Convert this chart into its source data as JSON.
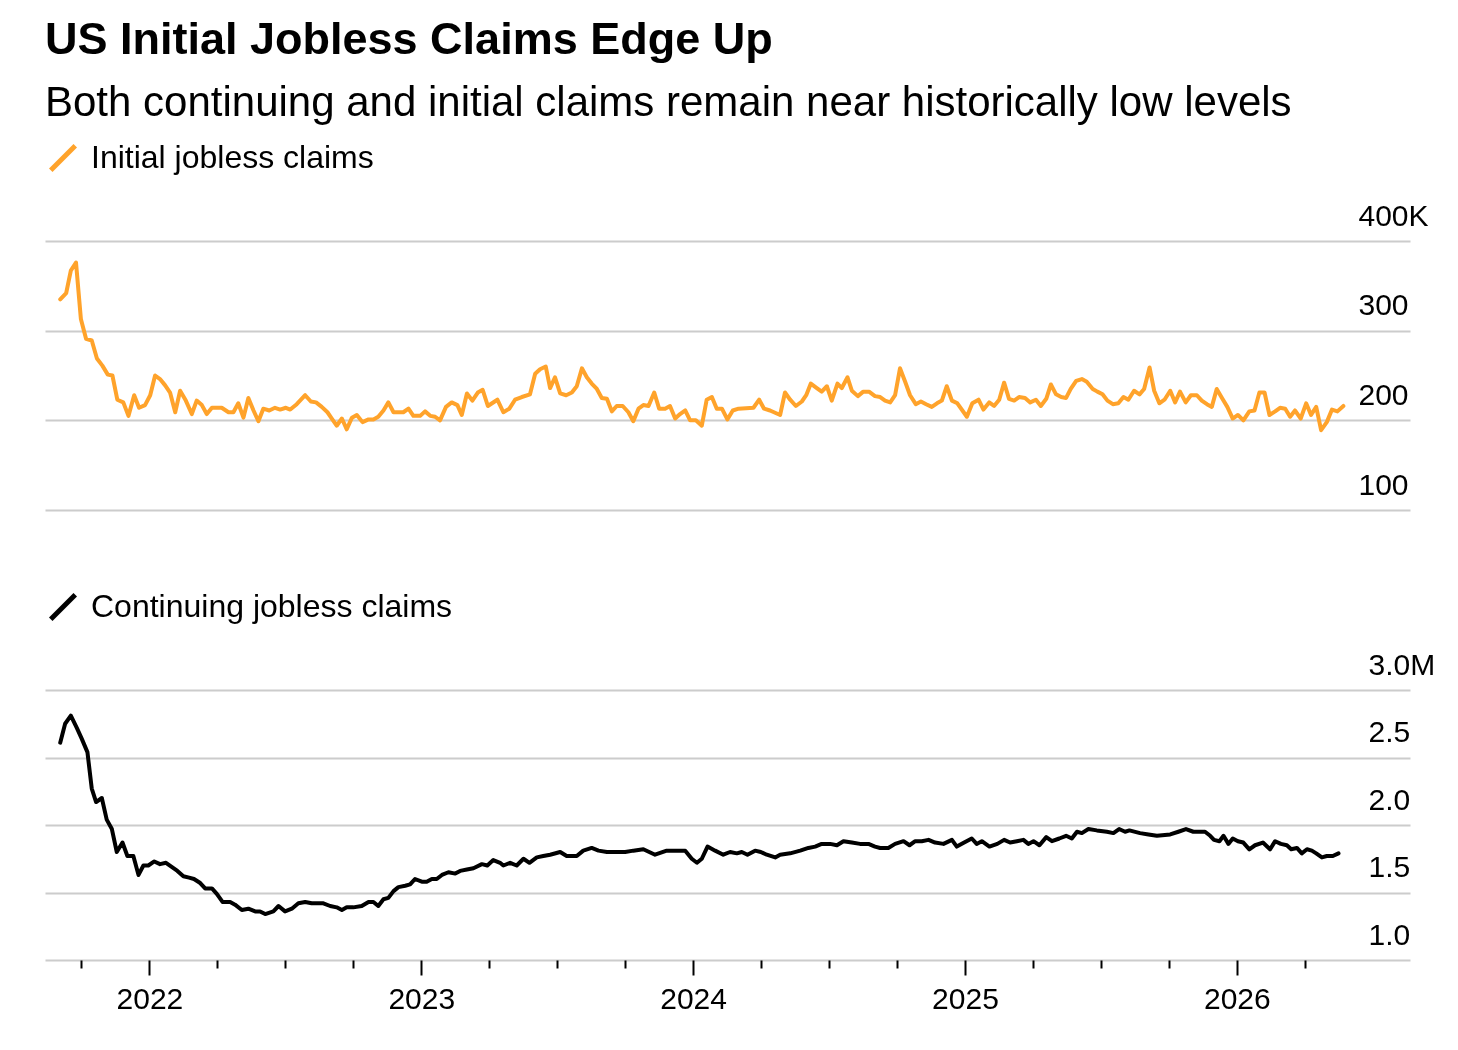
{
  "chart_data": [
    {
      "type": "line",
      "title": "US Initial Jobless Claims Edge Up",
      "subtitle": "Both continuing and initial claims remain near historically low levels",
      "xlim": [
        2021.616,
        2026.637
      ],
      "ylim": [
        100,
        400
      ],
      "yticks": [
        100,
        200,
        300,
        {
          "value": 400,
          "label": "400K"
        }
      ],
      "grid": "y",
      "legend": "top left",
      "tick_labels": "y",
      "series": [
        {
          "name": "Initial jobless claims",
          "color": "#ffa32b",
          "x": [
            2021.672,
            2021.694,
            2021.711,
            2021.73,
            2021.748,
            2021.767,
            2021.788,
            2021.807,
            2021.827,
            2021.847,
            2021.864,
            2021.882,
            2021.904,
            2021.923,
            2021.944,
            2021.962,
            2021.984,
            2022.003,
            2022.021,
            2022.039,
            2022.058,
            2022.076,
            2022.095,
            2022.113,
            2022.134,
            2022.156,
            2022.174,
            2022.193,
            2022.211,
            2022.23,
            2022.266,
            2022.291,
            2022.309,
            2022.327,
            2022.346,
            2022.364,
            2022.383,
            2022.401,
            2022.419,
            2022.441,
            2022.462,
            2022.481,
            2022.502,
            2022.518,
            2022.542,
            2022.573,
            2022.594,
            2022.613,
            2022.634,
            2022.655,
            2022.671,
            2022.689,
            2022.708,
            2022.726,
            2022.745,
            2022.763,
            2022.784,
            2022.806,
            2022.824,
            2022.842,
            2022.861,
            2022.879,
            2022.898,
            2022.934,
            2022.953,
            2022.971,
            2022.996,
            2023.014,
            2023.033,
            2023.051,
            2023.069,
            2023.091,
            2023.112,
            2023.133,
            2023.149,
            2023.168,
            2023.188,
            2023.208,
            2023.226,
            2023.245,
            2023.28,
            2023.302,
            2023.324,
            2023.345,
            2023.37,
            2023.4,
            2023.419,
            2023.437,
            2023.458,
            2023.474,
            2023.492,
            2023.511,
            2023.533,
            2023.554,
            2023.572,
            2023.591,
            2023.609,
            2023.627,
            2023.646,
            2023.664,
            2023.683,
            2023.701,
            2023.719,
            2023.741,
            2023.762,
            2023.78,
            2023.799,
            2023.817,
            2023.836,
            2023.857,
            2023.875,
            2023.897,
            2023.915,
            2023.934,
            2023.952,
            2023.971,
            2023.989,
            2024.01,
            2024.032,
            2024.05,
            2024.069,
            2024.087,
            2024.106,
            2024.126,
            2024.146,
            2024.167,
            2024.222,
            2024.243,
            2024.261,
            2024.283,
            2024.32,
            2024.338,
            2024.357,
            2024.378,
            2024.4,
            2024.416,
            2024.433,
            2024.455,
            2024.473,
            2024.492,
            2024.51,
            2024.531,
            2024.547,
            2024.568,
            2024.584,
            2024.606,
            2024.626,
            2024.647,
            2024.669,
            2024.688,
            2024.706,
            2024.725,
            2024.743,
            2024.761,
            2024.78,
            2024.798,
            2024.819,
            2024.838,
            2024.857,
            2024.878,
            2024.897,
            2024.915,
            2024.933,
            2024.952,
            2024.972,
            2025.007,
            2025.027,
            2025.05,
            2025.068,
            2025.089,
            2025.107,
            2025.126,
            2025.144,
            2025.162,
            2025.181,
            2025.199,
            2025.221,
            2025.24,
            2025.261,
            2025.279,
            2025.299,
            2025.316,
            2025.335,
            2025.354,
            2025.372,
            2025.389,
            2025.409,
            2025.43,
            2025.448,
            2025.47,
            2025.487,
            2025.506,
            2025.524,
            2025.544,
            2025.564,
            2025.583,
            2025.601,
            2025.622,
            2025.642,
            2025.659,
            2025.679,
            2025.696,
            2025.715,
            2025.734,
            2025.755,
            2025.773,
            2025.791,
            2025.812,
            2025.831,
            2025.853,
            2025.871,
            2025.89,
            2025.908,
            2025.926,
            2025.947,
            2025.965,
            2025.985,
            2026.004,
            2026.024,
            2026.046,
            2026.065,
            2026.083,
            2026.102,
            2026.12,
            2026.141,
            2026.159,
            2026.178,
            2026.196,
            2026.214,
            2026.235,
            2026.255,
            2026.273,
            2026.292,
            2026.31,
            2026.331,
            2026.35,
            2026.37,
            2026.392
          ],
          "values": [
            335,
            342,
            367,
            376,
            313,
            291,
            289,
            269,
            261,
            251,
            250,
            223,
            220,
            205,
            228,
            214,
            217,
            228,
            250,
            246,
            239,
            231,
            209,
            233,
            222,
            207,
            222,
            217,
            207,
            214,
            214,
            209,
            209,
            219,
            203,
            225,
            211,
            199,
            213,
            211,
            214,
            212,
            214,
            212,
            218,
            228,
            221,
            220,
            215,
            209,
            202,
            194,
            202,
            190,
            203,
            206,
            198,
            201,
            201,
            204,
            211,
            220,
            209,
            209,
            213,
            205,
            205,
            210,
            205,
            204,
            200,
            215,
            220,
            217,
            206,
            230,
            222,
            231,
            234,
            216,
            223,
            209,
            213,
            223,
            226,
            229,
            252,
            257,
            260,
            236,
            248,
            230,
            228,
            231,
            238,
            258,
            248,
            241,
            235,
            225,
            224,
            210,
            216,
            216,
            209,
            199,
            213,
            217,
            216,
            231,
            213,
            213,
            216,
            202,
            207,
            211,
            200,
            200,
            194,
            223,
            226,
            213,
            213,
            201,
            211,
            213,
            214,
            223,
            213,
            211,
            206,
            231,
            223,
            216,
            221,
            228,
            241,
            236,
            232,
            238,
            222,
            241,
            236,
            248,
            233,
            227,
            232,
            232,
            227,
            226,
            222,
            220,
            228,
            258,
            243,
            228,
            218,
            221,
            218,
            215,
            219,
            222,
            238,
            222,
            219,
            204,
            219,
            223,
            212,
            220,
            216,
            223,
            242,
            224,
            222,
            226,
            225,
            220,
            223,
            216,
            224,
            240,
            229,
            226,
            225,
            235,
            244,
            246,
            243,
            235,
            232,
            229,
            222,
            218,
            219,
            226,
            223,
            233,
            229,
            235,
            259,
            233,
            219,
            223,
            233,
            220,
            232,
            220,
            228,
            228,
            222,
            218,
            215,
            235,
            224,
            215,
            202,
            206,
            200,
            210,
            211,
            231,
            231,
            206,
            210,
            214,
            213,
            204,
            211,
            202,
            219,
            206,
            215,
            189,
            198,
            212,
            210,
            216
          ]
        }
      ]
    },
    {
      "type": "line",
      "xlim": [
        2021.616,
        2026.637
      ],
      "xticks": [
        {
          "value": 2021.75,
          "label": null
        },
        2022,
        {
          "value": 2022.25,
          "label": null
        },
        {
          "value": 2022.5,
          "label": null
        },
        {
          "value": 2022.75,
          "label": null
        },
        2023,
        {
          "value": 2023.25,
          "label": null
        },
        {
          "value": 2023.5,
          "label": null
        },
        {
          "value": 2023.75,
          "label": null
        },
        2024,
        {
          "value": 2024.25,
          "label": null
        },
        {
          "value": 2024.5,
          "label": null
        },
        {
          "value": 2024.75,
          "label": null
        },
        2025,
        {
          "value": 2025.25,
          "label": null
        },
        {
          "value": 2025.5,
          "label": null
        },
        {
          "value": 2025.75,
          "label": null
        },
        2026,
        {
          "value": 2026.25,
          "label": null
        }
      ],
      "ylim": [
        1,
        3
      ],
      "yticks": [
        {
          "value": 1,
          "label": "1.0"
        },
        1.5,
        {
          "value": 2,
          "label": "2.0"
        },
        2.5,
        {
          "value": 3,
          "label": "3.0M"
        }
      ],
      "grid": "y",
      "legend": "top left",
      "series": [
        {
          "name": "Continuing jobless claims",
          "color": "#000000",
          "x": [
            2021.672,
            2021.69,
            2021.711,
            2021.733,
            2021.751,
            2021.772,
            2021.788,
            2021.804,
            2021.825,
            2021.843,
            2021.862,
            2021.88,
            2021.901,
            2021.919,
            2021.941,
            2021.96,
            2021.978,
            2021.996,
            2022.018,
            2022.039,
            2022.061,
            2022.082,
            2022.103,
            2022.125,
            2022.146,
            2022.164,
            2022.187,
            2022.205,
            2022.23,
            2022.248,
            2022.269,
            2022.297,
            2022.315,
            2022.34,
            2022.364,
            2022.389,
            2022.407,
            2022.426,
            2022.456,
            2022.475,
            2022.499,
            2022.524,
            2022.548,
            2022.573,
            2022.597,
            2022.616,
            2022.64,
            2022.665,
            2022.689,
            2022.708,
            2022.726,
            2022.75,
            2022.781,
            2022.806,
            2022.824,
            2022.842,
            2022.861,
            2022.879,
            2022.898,
            2022.916,
            2022.941,
            2022.959,
            2022.977,
            2023.002,
            2023.02,
            2023.039,
            2023.057,
            2023.076,
            2023.1,
            2023.125,
            2023.143,
            2023.168,
            2023.192,
            2023.223,
            2023.243,
            2023.265,
            2023.29,
            2023.302,
            2023.327,
            2023.351,
            2023.376,
            2023.398,
            2023.425,
            2023.449,
            2023.474,
            2023.511,
            2023.535,
            2023.572,
            2023.596,
            2023.627,
            2023.652,
            2023.683,
            2023.719,
            2023.75,
            2023.78,
            2023.817,
            2023.86,
            2023.903,
            2023.94,
            2023.971,
            2023.995,
            2024.014,
            2024.032,
            2024.053,
            2024.081,
            2024.111,
            2024.136,
            2024.161,
            2024.179,
            2024.2,
            2024.228,
            2024.249,
            2024.271,
            2024.302,
            2024.32,
            2024.357,
            2024.394,
            2024.424,
            2024.449,
            2024.473,
            2024.504,
            2024.529,
            2024.553,
            2024.584,
            2024.614,
            2024.645,
            2024.669,
            2024.688,
            2024.718,
            2024.743,
            2024.774,
            2024.796,
            2024.817,
            2024.841,
            2024.866,
            2024.89,
            2024.921,
            2024.952,
            2024.97,
            2024.997,
            2025.025,
            2025.043,
            2025.062,
            2025.09,
            2025.119,
            2025.144,
            2025.166,
            2025.191,
            2025.215,
            2025.233,
            2025.252,
            2025.274,
            2025.299,
            2025.32,
            2025.347,
            2025.372,
            2025.393,
            2025.412,
            2025.43,
            2025.454,
            2025.485,
            2025.522,
            2025.546,
            2025.567,
            2025.589,
            2025.605,
            2025.644,
            2025.675,
            2025.706,
            2025.755,
            2025.785,
            2025.813,
            2025.84,
            2025.883,
            2025.902,
            2025.916,
            2025.936,
            2025.951,
            2025.969,
            2025.985,
            2026.004,
            2026.024,
            2026.046,
            2026.067,
            2026.096,
            2026.122,
            2026.141,
            2026.162,
            2026.184,
            2026.2,
            2026.221,
            2026.239,
            2026.258,
            2026.276,
            2026.292,
            2026.313,
            2026.331,
            2026.353,
            2026.374
          ],
          "values": [
            2.61,
            2.75,
            2.81,
            2.72,
            2.64,
            2.54,
            2.27,
            2.17,
            2.2,
            2.04,
            1.97,
            1.8,
            1.87,
            1.77,
            1.77,
            1.63,
            1.7,
            1.7,
            1.73,
            1.71,
            1.72,
            1.69,
            1.66,
            1.62,
            1.61,
            1.6,
            1.57,
            1.53,
            1.53,
            1.49,
            1.43,
            1.43,
            1.41,
            1.37,
            1.38,
            1.36,
            1.36,
            1.34,
            1.36,
            1.4,
            1.36,
            1.38,
            1.42,
            1.43,
            1.42,
            1.42,
            1.42,
            1.4,
            1.39,
            1.37,
            1.39,
            1.39,
            1.4,
            1.43,
            1.43,
            1.4,
            1.45,
            1.46,
            1.51,
            1.54,
            1.55,
            1.56,
            1.6,
            1.58,
            1.58,
            1.6,
            1.6,
            1.63,
            1.65,
            1.64,
            1.66,
            1.67,
            1.68,
            1.71,
            1.7,
            1.74,
            1.72,
            1.7,
            1.72,
            1.7,
            1.75,
            1.72,
            1.76,
            1.77,
            1.78,
            1.8,
            1.77,
            1.77,
            1.81,
            1.83,
            1.81,
            1.8,
            1.8,
            1.8,
            1.81,
            1.82,
            1.78,
            1.81,
            1.81,
            1.81,
            1.75,
            1.72,
            1.75,
            1.84,
            1.81,
            1.78,
            1.8,
            1.79,
            1.8,
            1.78,
            1.81,
            1.8,
            1.78,
            1.76,
            1.78,
            1.79,
            1.81,
            1.83,
            1.84,
            1.86,
            1.86,
            1.85,
            1.88,
            1.87,
            1.86,
            1.86,
            1.84,
            1.83,
            1.83,
            1.86,
            1.88,
            1.85,
            1.88,
            1.88,
            1.89,
            1.87,
            1.86,
            1.89,
            1.84,
            1.87,
            1.9,
            1.86,
            1.88,
            1.84,
            1.86,
            1.89,
            1.87,
            1.88,
            1.89,
            1.86,
            1.88,
            1.85,
            1.91,
            1.88,
            1.9,
            1.92,
            1.9,
            1.95,
            1.94,
            1.97,
            1.96,
            1.95,
            1.94,
            1.97,
            1.95,
            1.96,
            1.94,
            1.93,
            1.92,
            1.93,
            1.95,
            1.97,
            1.95,
            1.95,
            1.92,
            1.89,
            1.88,
            1.92,
            1.86,
            1.9,
            1.88,
            1.87,
            1.82,
            1.85,
            1.87,
            1.82,
            1.88,
            1.86,
            1.85,
            1.82,
            1.83,
            1.79,
            1.82,
            1.81,
            1.79,
            1.76,
            1.77,
            1.77,
            1.79
          ]
        }
      ]
    }
  ]
}
